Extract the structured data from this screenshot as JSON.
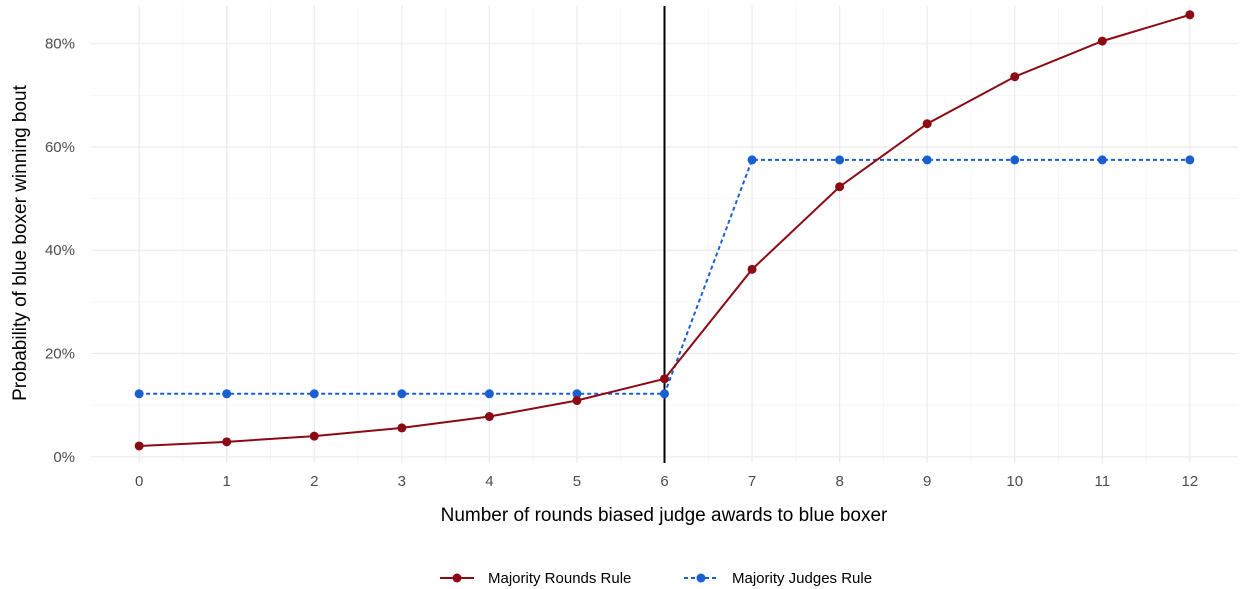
{
  "chart_data": {
    "type": "line",
    "title": "",
    "xlabel": "Number of rounds biased judge awards to blue boxer",
    "ylabel": "Probability of blue boxer winning bout",
    "x": [
      0,
      1,
      2,
      3,
      4,
      5,
      6,
      7,
      8,
      9,
      10,
      11,
      12
    ],
    "xlim": [
      -0.55,
      12.55
    ],
    "ylim": [
      -0.012,
      0.873
    ],
    "y_ticks": [
      0,
      0.2,
      0.4,
      0.6,
      0.8
    ],
    "y_tick_labels": [
      "0%",
      "20%",
      "40%",
      "60%",
      "80%"
    ],
    "x_tick_labels": [
      "0",
      "1",
      "2",
      "3",
      "4",
      "5",
      "6",
      "7",
      "8",
      "9",
      "10",
      "11",
      "12"
    ],
    "vertical_line_x": 6,
    "grid": true,
    "legend_position": "bottom",
    "series": [
      {
        "name": "Majority Rounds Rule",
        "color": "#8b0a14",
        "line_style": "solid",
        "values": [
          0.021,
          0.029,
          0.04,
          0.056,
          0.078,
          0.109,
          0.151,
          0.363,
          0.523,
          0.645,
          0.736,
          0.805,
          0.856
        ]
      },
      {
        "name": "Majority Judges Rule",
        "color": "#1a5fd0",
        "line_style": "dashed",
        "values": [
          0.122,
          0.122,
          0.122,
          0.122,
          0.122,
          0.122,
          0.122,
          0.575,
          0.575,
          0.575,
          0.575,
          0.575,
          0.575
        ]
      }
    ]
  }
}
